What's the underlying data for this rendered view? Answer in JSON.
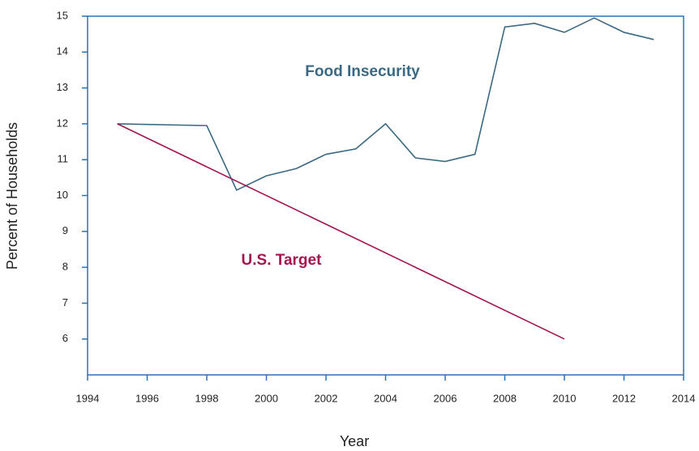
{
  "chart_data": {
    "type": "line",
    "x_label": "Year",
    "y_label": "Percent of Households",
    "xlim": [
      1994,
      2014
    ],
    "xticks": [
      1994,
      1996,
      1998,
      2000,
      2002,
      2004,
      2006,
      2008,
      2010,
      2012,
      2014
    ],
    "ylim": [
      5,
      15
    ],
    "yticks": [
      6,
      7,
      8,
      9,
      10,
      11,
      12,
      13,
      14,
      15
    ],
    "axis_color": "#2a72b8",
    "series": [
      {
        "name": "Food Insecurity",
        "color": "#3b6983",
        "x": [
          1995,
          1998,
          1999,
          2000,
          2001,
          2002,
          2003,
          2004,
          2005,
          2006,
          2007,
          2008,
          2009,
          2010,
          2011,
          2012,
          2013
        ],
        "values": [
          12.0,
          11.95,
          10.15,
          10.55,
          10.75,
          11.15,
          11.3,
          12.0,
          11.05,
          10.95,
          11.15,
          14.7,
          14.8,
          14.55,
          14.95,
          14.55,
          14.35
        ]
      },
      {
        "name": "U.S. Target",
        "color": "#a3164f",
        "x": [
          1995,
          2010
        ],
        "values": [
          12,
          6
        ]
      }
    ]
  }
}
